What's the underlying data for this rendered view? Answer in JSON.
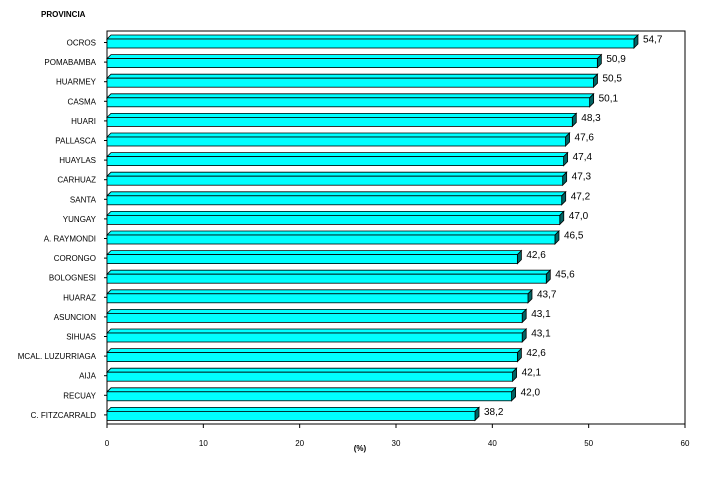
{
  "chart_data": {
    "type": "bar",
    "orientation": "horizontal",
    "title": "PROVINCIA",
    "xlabel": "(%)",
    "xlim": [
      0,
      60
    ],
    "xticks": [
      "0",
      "10",
      "20",
      "30",
      "40",
      "50",
      "60"
    ],
    "categories": [
      "OCROS",
      "POMABAMBA",
      "HUARMEY",
      "CASMA",
      "HUARI",
      "PALLASCA",
      "HUAYLAS",
      "CARHUAZ",
      "SANTA",
      "YUNGAY",
      "A. RAYMONDI",
      "CORONGO",
      "BOLOGNESI",
      "HUARAZ",
      "ASUNCION",
      "SIHUAS",
      "MCAL. LUZURRIAGA",
      "AIJA",
      "RECUAY",
      "C. FITZCARRALD"
    ],
    "values": [
      54.7,
      50.9,
      50.5,
      50.1,
      48.3,
      47.6,
      47.4,
      47.3,
      47.2,
      47.0,
      46.5,
      42.6,
      45.6,
      43.7,
      43.1,
      43.1,
      42.6,
      42.1,
      42.0,
      38.2
    ],
    "value_labels": [
      "54,7",
      "50,9",
      "50,5",
      "50,1",
      "48,3",
      "47,6",
      "47,4",
      "47,3",
      "47,2",
      "47,0",
      "46,5",
      "42,6",
      "45,6",
      "43,7",
      "43,1",
      "43,1",
      "42,6",
      "42,1",
      "42,0",
      "38,2"
    ],
    "bar_color": "#00FFFF",
    "bar_side_color": "#006464",
    "grid": false,
    "legend": "none"
  }
}
